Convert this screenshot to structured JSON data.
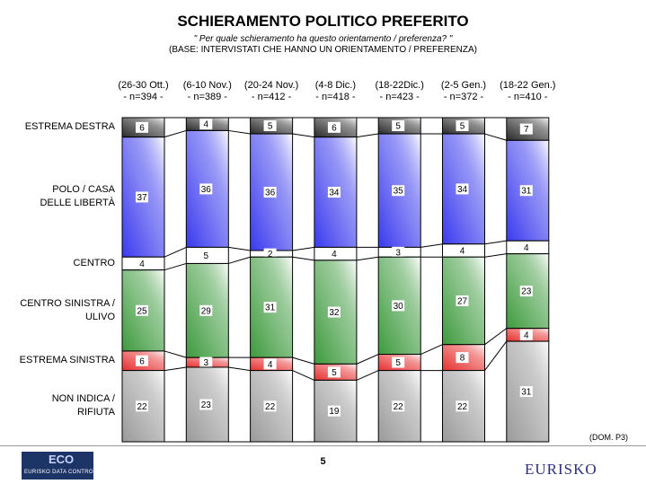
{
  "header": {
    "title": "SCHIERAMENTO POLITICO PREFERITO",
    "subtitle": "\" Per quale schieramento ha questo orientamento / preferenza? \"",
    "base": "(BASE: INTERVISTATI CHE HANNO UN ORIENTAMENTO / PREFERENZA)"
  },
  "footer": {
    "note": "(DOM. P3)",
    "page_number": "5",
    "logo_left_mark": "ECO",
    "logo_left_text": "EURISKO DATA CONTROLS",
    "logo_right_text": "EURISKO"
  },
  "colors": {
    "estrema_destra": "#2a2a2a",
    "polo": "#3a3aee",
    "centro": "#ffffff",
    "centro_sinistra": "#3e9a3e",
    "estrema_sinistra": "#e63030",
    "non_indica": "#9a9a9a"
  },
  "chart_data": {
    "type": "bar",
    "stacked": true,
    "normalized": true,
    "categories": [
      {
        "date": "(26-30 Ott.)",
        "n": "- n=394 -"
      },
      {
        "date": "(6-10 Nov.)",
        "n": "- n=389 -"
      },
      {
        "date": "(20-24 Nov.)",
        "n": "- n=412 -"
      },
      {
        "date": "(4-8 Dic.)",
        "n": "- n=418 -"
      },
      {
        "date": "(18-22Dic.)",
        "n": "- n=423 -"
      },
      {
        "date": "(2-5 Gen.)",
        "n": "- n=372 -"
      },
      {
        "date": "(18-22 Gen.)",
        "n": "- n=410 -"
      }
    ],
    "series": [
      {
        "name": "ESTREMA DESTRA",
        "label_lines": [
          "ESTREMA DESTRA"
        ],
        "key": "estrema_destra",
        "values": [
          6,
          4,
          5,
          6,
          5,
          5,
          7
        ]
      },
      {
        "name": "POLO / CASA DELLE LIBERTÀ",
        "label_lines": [
          "POLO / CASA",
          "DELLE LIBERTÀ"
        ],
        "key": "polo",
        "values": [
          37,
          36,
          36,
          34,
          35,
          34,
          31
        ]
      },
      {
        "name": "CENTRO",
        "label_lines": [
          "CENTRO"
        ],
        "key": "centro",
        "values": [
          4,
          5,
          2,
          4,
          3,
          4,
          4
        ]
      },
      {
        "name": "CENTRO SINISTRA / ULIVO",
        "label_lines": [
          "CENTRO SINISTRA /",
          "ULIVO"
        ],
        "key": "centro_sinistra",
        "values": [
          25,
          29,
          31,
          32,
          30,
          27,
          23
        ]
      },
      {
        "name": "ESTREMA SINISTRA",
        "label_lines": [
          "ESTREMA SINISTRA"
        ],
        "key": "estrema_sinistra",
        "values": [
          6,
          3,
          4,
          5,
          5,
          8,
          4
        ]
      },
      {
        "name": "NON INDICA / RIFIUTA",
        "label_lines": [
          "NON INDICA /",
          "RIFIUTA"
        ],
        "key": "non_indica",
        "values": [
          22,
          23,
          22,
          19,
          22,
          22,
          31
        ]
      }
    ]
  }
}
